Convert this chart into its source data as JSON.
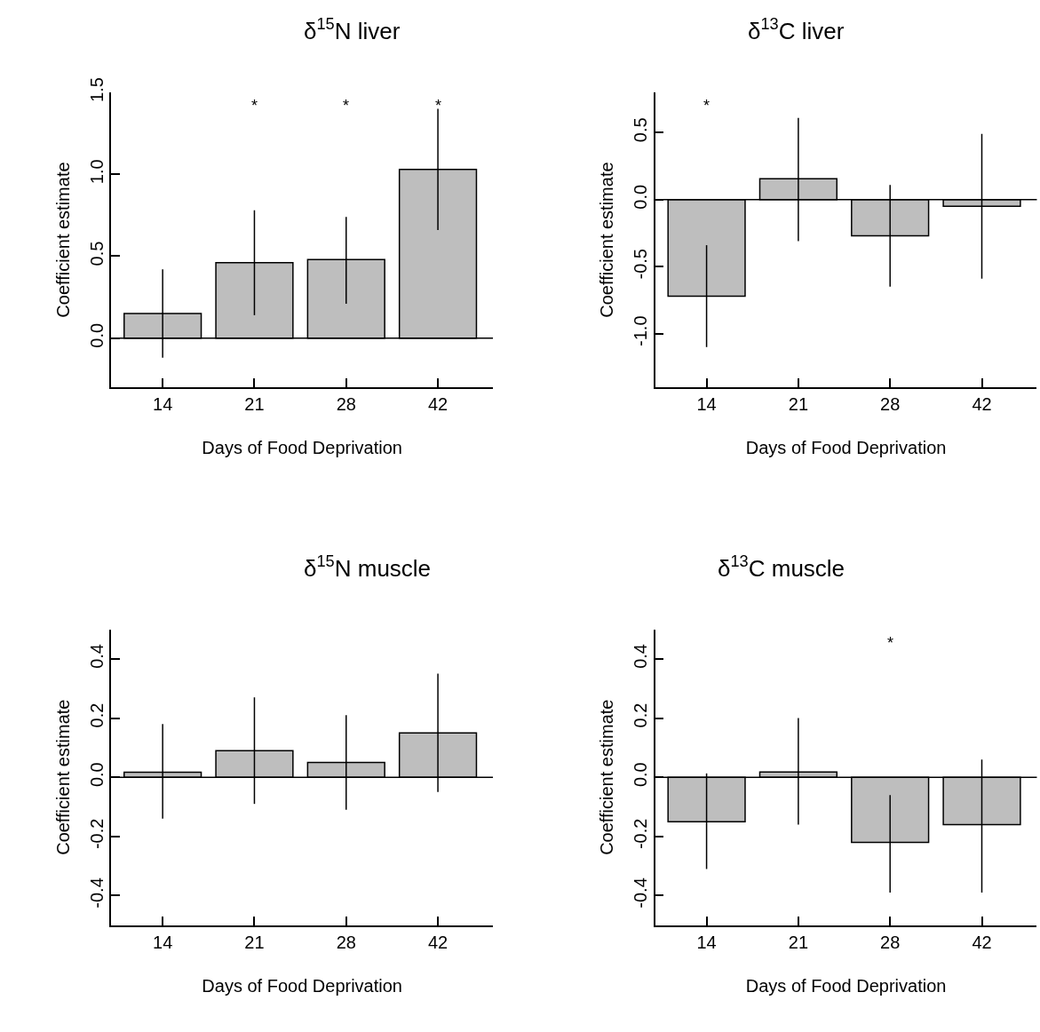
{
  "chart_data": [
    {
      "type": "bar",
      "title": "δ$^{15}$N liver",
      "xlabel": "Days of Food Deprivation",
      "ylabel": "Coefficient estimate",
      "categories": [
        "14",
        "21",
        "28",
        "42"
      ],
      "values": [
        0.15,
        0.46,
        0.48,
        1.03
      ],
      "color": "#bebebe",
      "errors": [
        [
          -0.12,
          0.42
        ],
        [
          0.14,
          0.78
        ],
        [
          0.21,
          0.74
        ],
        [
          0.66,
          1.4
        ]
      ],
      "ylim": [
        -0.3,
        1.5
      ],
      "yticks": [
        {
          "value": 0.0,
          "label": "0.0"
        },
        {
          "value": 0.5,
          "label": "0.5"
        },
        {
          "value": 1.0,
          "label": "1.0"
        },
        {
          "value": 1.5,
          "label": "1.5"
        }
      ],
      "ref_lines": [
        {
          "axis": "y",
          "value": 0,
          "color": "#000000"
        }
      ],
      "annotations": [
        "*",
        "*",
        "*"
      ]
    },
    {
      "type": "bar",
      "title": "δ$^{13}$C liver",
      "xlabel": "Days of Food Deprivation",
      "ylabel": "Coefficient estimate",
      "categories": [
        "14",
        "21",
        "28",
        "42"
      ],
      "values": [
        -0.72,
        0.155,
        -0.27,
        -0.05
      ],
      "color": "#bebebe",
      "errors": [
        [
          -1.1,
          -0.34
        ],
        [
          -0.31,
          0.61
        ],
        [
          -0.65,
          0.11
        ],
        [
          -0.59,
          0.49
        ]
      ],
      "ylim": [
        -1.4,
        0.8
      ],
      "yticks": [
        {
          "value": -1.0,
          "label": "-1.0"
        },
        -0.5,
        {
          "value": 0.0,
          "label": "0.0"
        },
        0.5
      ],
      "ref_lines": [
        {
          "axis": "y",
          "value": 0,
          "color": "#000000"
        }
      ],
      "annotations": [
        "*"
      ]
    },
    {
      "type": "bar",
      "title": "δ$^{15}$N muscle",
      "xlabel": "Days of Food Deprivation",
      "ylabel": "Coefficient estimate",
      "categories": [
        "14",
        "21",
        "28",
        "42"
      ],
      "values": [
        0.017,
        0.09,
        0.05,
        0.15
      ],
      "color": "#bebebe",
      "errors": [
        [
          -0.14,
          0.18
        ],
        [
          -0.09,
          0.27
        ],
        [
          -0.11,
          0.21
        ],
        [
          -0.05,
          0.35
        ]
      ],
      "ylim": [
        -0.5,
        0.5
      ],
      "yticks": [
        -0.4,
        -0.2,
        {
          "value": 0.0,
          "label": "0.0"
        },
        0.2,
        0.4
      ],
      "ref_lines": [
        {
          "axis": "y",
          "value": 0,
          "color": "#000000"
        }
      ]
    },
    {
      "type": "bar",
      "title": "δ$^{13}$C muscle",
      "xlabel": "Days of Food Deprivation",
      "ylabel": "Coefficient estimate",
      "categories": [
        "14",
        "21",
        "28",
        "42"
      ],
      "values": [
        -0.15,
        0.018,
        -0.22,
        -0.16
      ],
      "color": "#bebebe",
      "errors": [
        [
          -0.31,
          0.013
        ],
        [
          -0.16,
          0.2
        ],
        [
          -0.39,
          -0.06
        ],
        [
          -0.39,
          0.06
        ]
      ],
      "ylim": [
        -0.5,
        0.5
      ],
      "yticks": [
        -0.4,
        -0.2,
        {
          "value": 0.0,
          "label": "0.0"
        },
        0.2,
        0.4
      ],
      "ref_lines": [
        {
          "axis": "y",
          "value": 0,
          "color": "#000000"
        }
      ],
      "annotations": [
        "*"
      ]
    }
  ]
}
